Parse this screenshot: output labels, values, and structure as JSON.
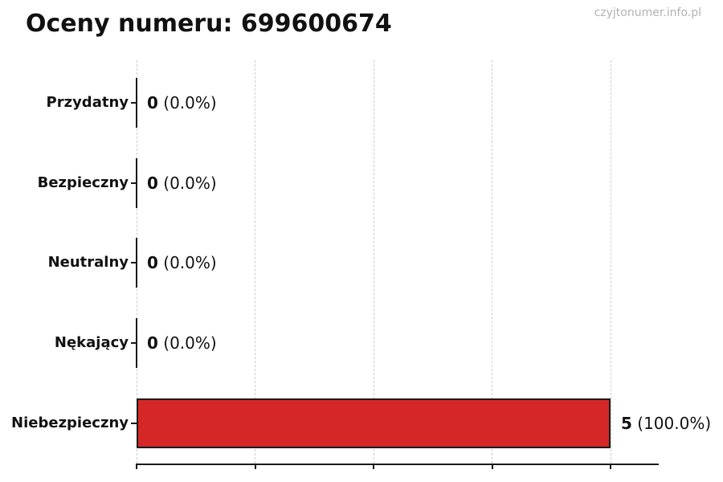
{
  "header": {
    "title": "Oceny numeru: 699600674",
    "watermark": "czyjtonumer.info.pl"
  },
  "chart_data": {
    "type": "bar",
    "orientation": "horizontal",
    "title": "Oceny numeru: 699600674",
    "categories": [
      "Przydatny",
      "Bezpieczny",
      "Neutralny",
      "Nękający",
      "Niebezpieczny"
    ],
    "values": [
      0,
      0,
      0,
      0,
      5
    ],
    "value_labels": [
      {
        "count": "0",
        "percent": "(0.0%)"
      },
      {
        "count": "0",
        "percent": "(0.0%)"
      },
      {
        "count": "0",
        "percent": "(0.0%)"
      },
      {
        "count": "0",
        "percent": "(0.0%)"
      },
      {
        "count": "5",
        "percent": "(100.0%)"
      }
    ],
    "xlabel": "",
    "ylabel": "",
    "xlim": [
      0,
      5
    ],
    "grid": true,
    "gridline_values": [
      0,
      1.25,
      2.5,
      3.75,
      5
    ],
    "legend": "none",
    "bar_color": "#d62728",
    "bar_edge_color": "#1a1a1a",
    "gridline_color": "#cccccc",
    "axis_color": "#1a1a1a",
    "text_color": "#111111",
    "watermark_color": "#b2b2b2"
  }
}
